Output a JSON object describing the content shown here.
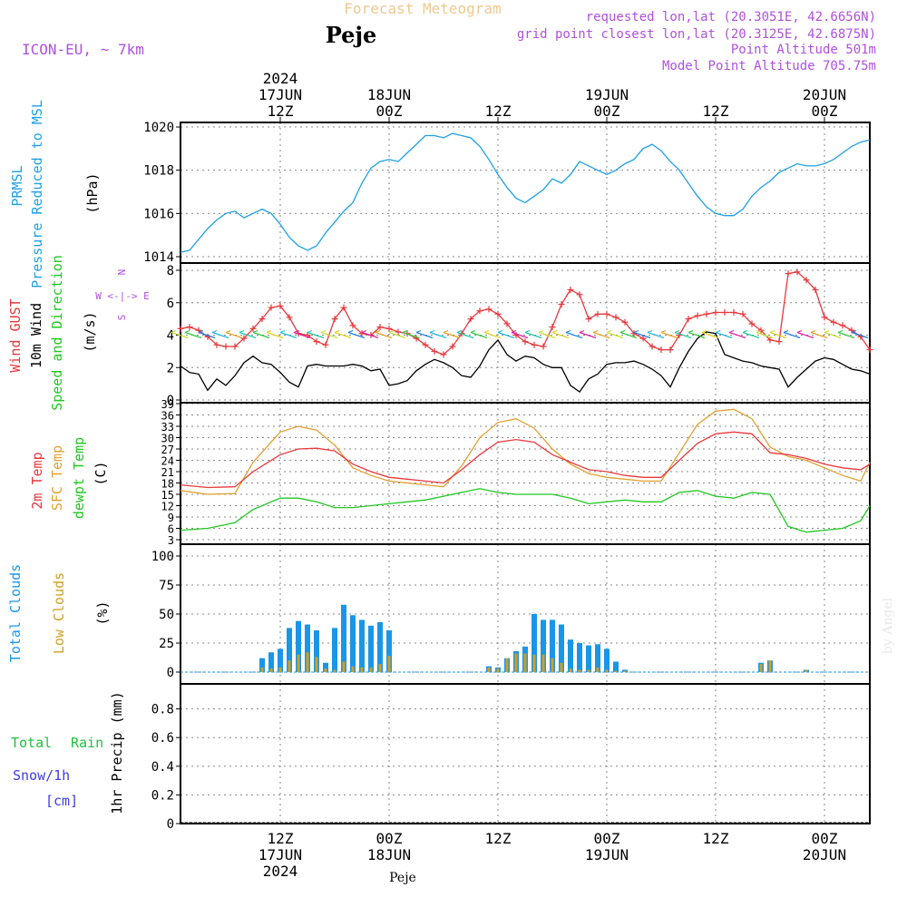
{
  "header": {
    "title": "Forecast Meteogram",
    "location": "Peje",
    "model": "ICON-EU, ~ 7km",
    "requested": "requested lon,lat (20.3051E, 42.6656N)",
    "gridpoint": "grid point closest lon,lat (20.3125E, 42.6875N)",
    "point_alt": "Point Altitude 501m",
    "model_alt": "Model Point Altitude 705.75m"
  },
  "time_axis": {
    "top_ticks": [
      {
        "day": "2024",
        "hour": "",
        "label": "17JUN",
        "h": 12,
        "sub": "12Z"
      },
      {
        "label": "18JUN",
        "h": 24,
        "sub": "00Z"
      },
      {
        "label": "",
        "h": 36,
        "sub": "12Z"
      },
      {
        "label": "19JUN",
        "h": 48,
        "sub": "00Z"
      },
      {
        "label": "",
        "h": 60,
        "sub": "12Z"
      },
      {
        "label": "20JUN",
        "h": 72,
        "sub": "00Z"
      }
    ],
    "top_year": "2024",
    "bottom_year": "2024",
    "footer_label": "Peje",
    "range_hours": [
      1,
      77
    ]
  },
  "watermark": "by Angel",
  "labels": {
    "p1": [
      "PRMSL",
      "Pressure Reduced to MSL",
      "(hPa)"
    ],
    "p2": [
      "Wind GUST",
      "10m Wind",
      "Speed and Direction",
      "(m/s)"
    ],
    "compass": [
      "N",
      "W <-|-> E",
      "S"
    ],
    "p3": [
      "2m Temp",
      "SFC Temp",
      "dewpt Temp",
      "(C)"
    ],
    "p4": [
      "Total Clouds",
      "Low Clouds",
      "(%)"
    ],
    "p5": [
      "Total",
      "Rain",
      "Snow/1h",
      "[cm]",
      "1hr Precip (mm)"
    ]
  },
  "colors": {
    "pressure": "#1ea0e6",
    "gust": "#e8383c",
    "wind": "#000000",
    "t2m": "#e8383c",
    "tsfc": "#e0a030",
    "tdew": "#20c820",
    "cloud_total": "#1a96e8",
    "cloud_low": "#d0a020",
    "rain": "#20c040",
    "snow": "#3c3ce6",
    "meta": "#b050e0",
    "title": "#f0c890"
  },
  "chart_data": [
    {
      "type": "line",
      "name": "pressure",
      "ylim": [
        1014,
        1020
      ],
      "yticks": [
        1014,
        1016,
        1018,
        1020
      ],
      "x": [
        1,
        2,
        3,
        4,
        5,
        6,
        7,
        8,
        9,
        10,
        11,
        12,
        13,
        14,
        15,
        16,
        17,
        18,
        19,
        20,
        21,
        22,
        23,
        24,
        25,
        26,
        27,
        28,
        29,
        30,
        31,
        32,
        33,
        34,
        35,
        36,
        37,
        38,
        39,
        40,
        41,
        42,
        43,
        44,
        45,
        46,
        47,
        48,
        49,
        50,
        51,
        52,
        53,
        54,
        55,
        56,
        57,
        58,
        59,
        60,
        61,
        62,
        63,
        64,
        65,
        66,
        67,
        68,
        69,
        70,
        71,
        72,
        73,
        74,
        75,
        76,
        77
      ],
      "values": [
        1014.2,
        1014.3,
        1014.8,
        1015.3,
        1015.7,
        1016.0,
        1016.1,
        1015.8,
        1016.0,
        1016.2,
        1016.0,
        1015.5,
        1014.9,
        1014.5,
        1014.3,
        1014.5,
        1015.1,
        1015.6,
        1016.1,
        1016.5,
        1017.4,
        1018.1,
        1018.4,
        1018.5,
        1018.4,
        1018.8,
        1019.2,
        1019.6,
        1019.6,
        1019.5,
        1019.7,
        1019.6,
        1019.5,
        1019.1,
        1018.5,
        1017.8,
        1017.2,
        1016.7,
        1016.5,
        1016.8,
        1017.1,
        1017.6,
        1017.4,
        1017.8,
        1018.4,
        1018.2,
        1018.0,
        1017.8,
        1018.0,
        1018.3,
        1018.5,
        1019.0,
        1019.2,
        1018.9,
        1018.4,
        1018.0,
        1017.4,
        1016.8,
        1016.3,
        1016.0,
        1015.9,
        1015.9,
        1016.2,
        1016.8,
        1017.2,
        1017.5,
        1017.9,
        1018.1,
        1018.3,
        1018.2,
        1018.2,
        1018.3,
        1018.5,
        1018.8,
        1019.1,
        1019.3,
        1019.4
      ]
    },
    {
      "type": "line",
      "name": "wind",
      "ylim": [
        0,
        8
      ],
      "yticks": [
        0,
        2,
        4,
        6,
        8
      ],
      "x": [
        1,
        2,
        3,
        4,
        5,
        6,
        7,
        8,
        9,
        10,
        11,
        12,
        13,
        14,
        15,
        16,
        17,
        18,
        19,
        20,
        21,
        22,
        23,
        24,
        25,
        26,
        27,
        28,
        29,
        30,
        31,
        32,
        33,
        34,
        35,
        36,
        37,
        38,
        39,
        40,
        41,
        42,
        43,
        44,
        45,
        46,
        47,
        48,
        49,
        50,
        51,
        52,
        53,
        54,
        55,
        56,
        57,
        58,
        59,
        60,
        61,
        62,
        63,
        64,
        65,
        66,
        67,
        68,
        69,
        70,
        71,
        72,
        73,
        74,
        75,
        76,
        77
      ],
      "gust": [
        4.4,
        4.5,
        4.3,
        3.9,
        3.4,
        3.3,
        3.3,
        3.8,
        4.4,
        5.0,
        5.7,
        5.8,
        5.1,
        4.1,
        4.0,
        3.6,
        3.4,
        5.0,
        5.7,
        4.6,
        4.1,
        4.0,
        4.5,
        4.4,
        4.2,
        4.1,
        3.8,
        3.4,
        3.0,
        2.8,
        3.3,
        4.1,
        5.0,
        5.5,
        5.6,
        5.3,
        4.7,
        4.0,
        3.6,
        3.4,
        3.3,
        4.5,
        5.9,
        6.8,
        6.5,
        5.0,
        5.3,
        5.3,
        5.1,
        4.8,
        4.1,
        3.8,
        3.3,
        3.1,
        3.1,
        4.0,
        5.0,
        5.2,
        5.3,
        5.4,
        5.4,
        5.4,
        5.3,
        4.7,
        4.3,
        3.7,
        3.6,
        7.8,
        7.9,
        7.4,
        6.8,
        5.1,
        4.8,
        4.6,
        4.3,
        3.9,
        3.1
      ],
      "values": [
        2.1,
        1.7,
        1.6,
        0.6,
        1.3,
        0.9,
        1.5,
        2.3,
        2.7,
        2.3,
        2.2,
        1.7,
        1.1,
        0.8,
        2.1,
        2.2,
        2.1,
        2.1,
        2.1,
        2.2,
        2.1,
        1.8,
        1.9,
        0.9,
        1.0,
        1.2,
        1.8,
        2.2,
        2.5,
        2.3,
        2.0,
        1.5,
        1.4,
        2.1,
        3.1,
        3.7,
        2.8,
        2.4,
        2.7,
        2.6,
        2.2,
        2.0,
        2.0,
        0.9,
        0.5,
        1.3,
        1.6,
        2.2,
        2.3,
        2.3,
        2.4,
        2.2,
        1.9,
        1.5,
        0.8,
        2.0,
        3.0,
        3.8,
        4.2,
        4.1,
        2.8,
        2.6,
        2.4,
        2.3,
        2.1,
        2.0,
        1.9,
        0.8,
        1.4,
        1.9,
        2.4,
        2.6,
        2.5,
        2.2,
        1.9,
        1.8,
        1.6
      ]
    },
    {
      "type": "line",
      "name": "temperature",
      "ylim": [
        3,
        39
      ],
      "yticks": [
        3,
        6,
        9,
        12,
        15,
        18,
        21,
        24,
        27,
        30,
        33,
        36,
        39
      ],
      "x": [
        1,
        4,
        7,
        9,
        12,
        14,
        16,
        18,
        20,
        22,
        24,
        26,
        28,
        30,
        32,
        34,
        36,
        38,
        40,
        42,
        44,
        46,
        48,
        50,
        52,
        54,
        56,
        58,
        60,
        62,
        64,
        66,
        68,
        70,
        72,
        74,
        76,
        77
      ],
      "t2m": [
        17.5,
        16.8,
        17.0,
        21.0,
        25.5,
        27.0,
        27.2,
        26.5,
        23.0,
        21.0,
        19.5,
        19.0,
        18.5,
        18.0,
        21.5,
        25.5,
        28.8,
        29.5,
        28.8,
        25.5,
        23.5,
        21.5,
        21.0,
        20.0,
        19.5,
        19.5,
        24.0,
        28.5,
        31.0,
        31.5,
        31.0,
        26.0,
        25.5,
        24.5,
        23.0,
        22.0,
        21.5,
        23.0
      ],
      "tsfc": [
        16.0,
        15.0,
        15.2,
        23.5,
        31.5,
        33.0,
        32.0,
        28.0,
        22.0,
        20.0,
        18.5,
        18.0,
        17.5,
        17.0,
        22.5,
        30.0,
        34.0,
        35.0,
        32.5,
        27.0,
        23.0,
        20.5,
        19.5,
        19.0,
        18.5,
        18.5,
        26.0,
        33.5,
        37.0,
        37.5,
        35.0,
        27.5,
        25.0,
        24.0,
        22.0,
        20.0,
        18.5,
        23.5
      ],
      "tdew": [
        5.5,
        6.0,
        7.5,
        11.0,
        14.0,
        14.0,
        13.0,
        11.5,
        11.5,
        12.0,
        12.5,
        13.0,
        13.5,
        14.5,
        15.5,
        16.5,
        15.5,
        15.0,
        15.0,
        15.0,
        14.0,
        12.5,
        13.0,
        13.5,
        13.0,
        13.0,
        15.5,
        16.0,
        14.5,
        14.0,
        15.5,
        15.0,
        6.5,
        5.0,
        5.5,
        6.0,
        8.0,
        12.0
      ]
    },
    {
      "type": "bar",
      "name": "clouds",
      "ylim": [
        0,
        100
      ],
      "yticks": [
        0,
        25,
        50,
        75,
        100
      ],
      "x": [
        10,
        11,
        12,
        13,
        14,
        15,
        16,
        17,
        18,
        19,
        20,
        21,
        22,
        23,
        24,
        35,
        36,
        37,
        38,
        39,
        40,
        41,
        42,
        43,
        44,
        45,
        46,
        47,
        48,
        49,
        50,
        65,
        66,
        70
      ],
      "total": [
        12,
        17,
        20,
        38,
        44,
        41,
        36,
        8,
        38,
        58,
        49,
        45,
        40,
        43,
        36,
        5,
        4,
        12,
        18,
        22,
        50,
        45,
        45,
        41,
        28,
        25,
        23,
        24,
        20,
        9,
        2,
        8,
        10,
        2
      ],
      "low": [
        4,
        3,
        4,
        10,
        15,
        17,
        13,
        3,
        2,
        9,
        5,
        4,
        4,
        7,
        14,
        4,
        3,
        12,
        16,
        16,
        15,
        15,
        12,
        8,
        3,
        2,
        2,
        4,
        2,
        1,
        1,
        7,
        10,
        2
      ]
    },
    {
      "type": "line",
      "name": "precip",
      "ylim": [
        0,
        1
      ],
      "yticks": [
        0,
        0.2,
        0.4,
        0.6,
        0.8
      ],
      "rain": [],
      "snow": []
    }
  ]
}
